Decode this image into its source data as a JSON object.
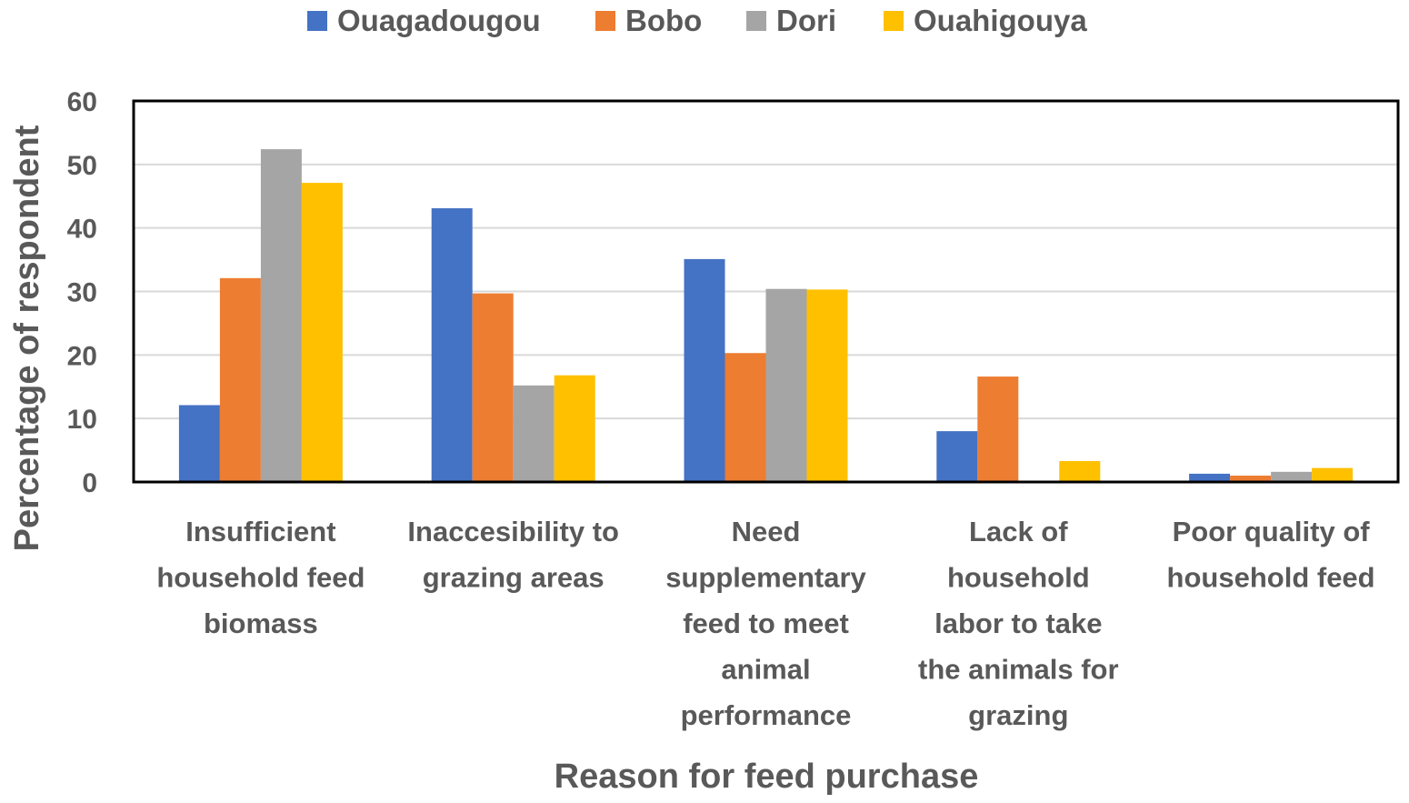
{
  "chart_data": {
    "type": "bar",
    "title": "",
    "xlabel": "Reason for feed purchase",
    "ylabel": "Percentage of respondent",
    "ylim": [
      0,
      60
    ],
    "yticks": [
      "0",
      "10",
      "20",
      "30",
      "40",
      "50",
      "60"
    ],
    "grid": true,
    "legend_position": "top",
    "categories": [
      [
        "Insufficient",
        "household feed",
        "biomass"
      ],
      [
        "Inaccesibility to",
        "grazing areas"
      ],
      [
        "Need",
        "supplementary",
        "feed to meet",
        "animal",
        "performance"
      ],
      [
        "Lack of",
        "household",
        "labor to take",
        "the animals for",
        "grazing"
      ],
      [
        "Poor quality of",
        "household feed"
      ]
    ],
    "series": [
      {
        "name": "Ouagadougou",
        "color": "#4472C4",
        "values": [
          12.1,
          43.1,
          35.1,
          8.0,
          1.3
        ]
      },
      {
        "name": "Bobo",
        "color": "#ED7D31",
        "values": [
          32.1,
          29.7,
          20.3,
          16.6,
          1.0
        ]
      },
      {
        "name": "Dori",
        "color": "#A5A5A5",
        "values": [
          52.4,
          15.2,
          30.4,
          0,
          1.6
        ]
      },
      {
        "name": "Ouahigouya",
        "color": "#FFC000",
        "values": [
          47.1,
          16.8,
          30.3,
          3.3,
          2.2
        ]
      }
    ]
  }
}
